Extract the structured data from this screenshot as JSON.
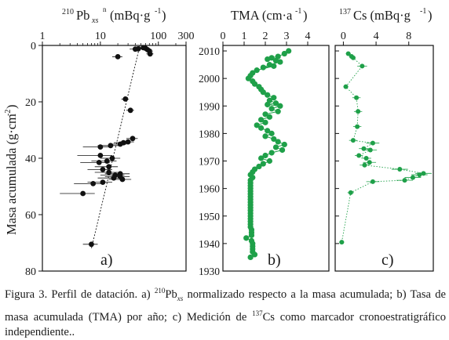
{
  "chart_data": [
    {
      "type": "scatter",
      "panel_label": "a)",
      "title_prefix": "210",
      "title_main": "Pb",
      "title_sub": "xs",
      "title_sup": "n",
      "title_unit": "(mBq·g",
      "title_unit_sup": "-1",
      "title_unit_end": ")",
      "ylabel_main": "Masa acumulada (g·cm",
      "ylabel_sup": "-2",
      "ylabel_end": ")",
      "xscale": "log",
      "xlim": [
        1,
        300
      ],
      "ylim": [
        80,
        0
      ],
      "xticks": [
        1,
        10,
        100,
        300
      ],
      "xtick_labels": [
        "1",
        "10",
        "100",
        "300"
      ],
      "yticks": [
        0,
        20,
        40,
        60,
        80
      ],
      "ytick_labels": [
        "0",
        "20",
        "40",
        "60",
        "80"
      ],
      "points": [
        {
          "x": 60,
          "y": 1,
          "err": 10
        },
        {
          "x": 65,
          "y": 1.5,
          "err": 12
        },
        {
          "x": 70,
          "y": 2,
          "err": 10
        },
        {
          "x": 55,
          "y": 0.8,
          "err": 12
        },
        {
          "x": 45,
          "y": 1.2,
          "err": 8
        },
        {
          "x": 40,
          "y": 1.3,
          "err": 8
        },
        {
          "x": 72,
          "y": 3,
          "err": 10
        },
        {
          "x": 20,
          "y": 4,
          "err": 4
        },
        {
          "x": 27,
          "y": 19,
          "err": 4
        },
        {
          "x": 33,
          "y": 23,
          "err": 5
        },
        {
          "x": 36,
          "y": 33,
          "err": 8
        },
        {
          "x": 30,
          "y": 34.2,
          "err": 8
        },
        {
          "x": 25,
          "y": 34.5,
          "err": 8
        },
        {
          "x": 22,
          "y": 35,
          "err": 6
        },
        {
          "x": 15,
          "y": 35.5,
          "err": 6
        },
        {
          "x": 10,
          "y": 36,
          "err": 5
        },
        {
          "x": 10,
          "y": 39,
          "err": 6
        },
        {
          "x": 16,
          "y": 40,
          "err": 6
        },
        {
          "x": 13,
          "y": 41,
          "err": 6
        },
        {
          "x": 9.5,
          "y": 41.5,
          "err": 5
        },
        {
          "x": 14,
          "y": 43,
          "err": 6
        },
        {
          "x": 11,
          "y": 44,
          "err": 5
        },
        {
          "x": 14,
          "y": 45,
          "err": 6
        },
        {
          "x": 22,
          "y": 45.5,
          "err": 10
        },
        {
          "x": 18,
          "y": 46,
          "err": 8
        },
        {
          "x": 22,
          "y": 46.5,
          "err": 10
        },
        {
          "x": 17,
          "y": 47,
          "err": 8
        },
        {
          "x": 24,
          "y": 47.5,
          "err": 10
        },
        {
          "x": 11,
          "y": 48.5,
          "err": 5
        },
        {
          "x": 7.5,
          "y": 49,
          "err": 4
        },
        {
          "x": 5,
          "y": 52.5,
          "err": 3
        },
        {
          "x": 7,
          "y": 70.5,
          "err": 2
        }
      ],
      "fit_line": [
        {
          "x": 48,
          "y": 0
        },
        {
          "x": 7,
          "y": 72
        }
      ]
    },
    {
      "type": "scatter",
      "panel_label": "b)",
      "title_main": "TMA (cm·a",
      "title_sup": "-1",
      "title_end": ")",
      "xlim": [
        0,
        5
      ],
      "ylim": [
        1930,
        2012
      ],
      "xticks": [
        0,
        1,
        2,
        3,
        4
      ],
      "xtick_labels": [
        "0",
        "1",
        "2",
        "3",
        "4"
      ],
      "yticks": [
        1930,
        1940,
        1950,
        1960,
        1970,
        1980,
        1990,
        2000,
        2010
      ],
      "ytick_labels": [
        "1930",
        "1940",
        "1950",
        "1960",
        "1970",
        "1980",
        "1990",
        "2000",
        "2010"
      ],
      "points": [
        {
          "x": 3.1,
          "y": 2010
        },
        {
          "x": 2.9,
          "y": 2009
        },
        {
          "x": 2.6,
          "y": 2008
        },
        {
          "x": 2.3,
          "y": 2007.5
        },
        {
          "x": 2.1,
          "y": 2007
        },
        {
          "x": 2.5,
          "y": 2006.5
        },
        {
          "x": 2.7,
          "y": 2006
        },
        {
          "x": 2.2,
          "y": 2005
        },
        {
          "x": 1.9,
          "y": 2004
        },
        {
          "x": 2.4,
          "y": 2004.5
        },
        {
          "x": 1.6,
          "y": 2003
        },
        {
          "x": 1.4,
          "y": 2002
        },
        {
          "x": 1.3,
          "y": 2001
        },
        {
          "x": 1.2,
          "y": 2000
        },
        {
          "x": 1.4,
          "y": 1999
        },
        {
          "x": 1.5,
          "y": 1998
        },
        {
          "x": 1.7,
          "y": 1997
        },
        {
          "x": 1.8,
          "y": 1996
        },
        {
          "x": 1.9,
          "y": 1995
        },
        {
          "x": 2.1,
          "y": 1994
        },
        {
          "x": 2.4,
          "y": 1993
        },
        {
          "x": 2.2,
          "y": 1992
        },
        {
          "x": 2.5,
          "y": 1991
        },
        {
          "x": 2.1,
          "y": 1990.5
        },
        {
          "x": 2.7,
          "y": 1990
        },
        {
          "x": 2.3,
          "y": 1989
        },
        {
          "x": 2.6,
          "y": 1988
        },
        {
          "x": 2.0,
          "y": 1987
        },
        {
          "x": 2.2,
          "y": 1986
        },
        {
          "x": 1.8,
          "y": 1985
        },
        {
          "x": 2.0,
          "y": 1984
        },
        {
          "x": 1.6,
          "y": 1983
        },
        {
          "x": 1.8,
          "y": 1982
        },
        {
          "x": 2.1,
          "y": 1981
        },
        {
          "x": 2.3,
          "y": 1980
        },
        {
          "x": 2.0,
          "y": 1979
        },
        {
          "x": 2.4,
          "y": 1978
        },
        {
          "x": 2.6,
          "y": 1977
        },
        {
          "x": 2.9,
          "y": 1976
        },
        {
          "x": 2.5,
          "y": 1975
        },
        {
          "x": 2.8,
          "y": 1974
        },
        {
          "x": 2.3,
          "y": 1973
        },
        {
          "x": 2.0,
          "y": 1972
        },
        {
          "x": 1.8,
          "y": 1971
        },
        {
          "x": 2.2,
          "y": 1970
        },
        {
          "x": 1.9,
          "y": 1969
        },
        {
          "x": 1.7,
          "y": 1968
        },
        {
          "x": 1.5,
          "y": 1967
        },
        {
          "x": 1.4,
          "y": 1966
        },
        {
          "x": 1.3,
          "y": 1965
        },
        {
          "x": 1.4,
          "y": 1964
        },
        {
          "x": 1.3,
          "y": 1963
        },
        {
          "x": 1.3,
          "y": 1962
        },
        {
          "x": 1.3,
          "y": 1961
        },
        {
          "x": 1.3,
          "y": 1960
        },
        {
          "x": 1.3,
          "y": 1959
        },
        {
          "x": 1.3,
          "y": 1958
        },
        {
          "x": 1.3,
          "y": 1957
        },
        {
          "x": 1.3,
          "y": 1956
        },
        {
          "x": 1.3,
          "y": 1955
        },
        {
          "x": 1.3,
          "y": 1954
        },
        {
          "x": 1.3,
          "y": 1953
        },
        {
          "x": 1.3,
          "y": 1952
        },
        {
          "x": 1.3,
          "y": 1951
        },
        {
          "x": 1.3,
          "y": 1950
        },
        {
          "x": 1.3,
          "y": 1949
        },
        {
          "x": 1.3,
          "y": 1948
        },
        {
          "x": 1.3,
          "y": 1947
        },
        {
          "x": 1.3,
          "y": 1946
        },
        {
          "x": 1.35,
          "y": 1945
        },
        {
          "x": 1.35,
          "y": 1944
        },
        {
          "x": 1.35,
          "y": 1943
        },
        {
          "x": 1.1,
          "y": 1942
        },
        {
          "x": 1.35,
          "y": 1941
        },
        {
          "x": 1.4,
          "y": 1940
        },
        {
          "x": 1.4,
          "y": 1939
        },
        {
          "x": 1.4,
          "y": 1938
        },
        {
          "x": 1.4,
          "y": 1937
        },
        {
          "x": 1.5,
          "y": 1936
        },
        {
          "x": 1.3,
          "y": 1935
        }
      ]
    },
    {
      "type": "scatter",
      "panel_label": "c)",
      "title_prefix": "137",
      "title_main": "Cs (mBq·g",
      "title_sup": "-1",
      "title_end": ")",
      "xlim": [
        -1,
        11
      ],
      "ylim": [
        1930,
        2012
      ],
      "xticks": [
        0,
        4,
        8
      ],
      "xtick_labels": [
        "0",
        "4",
        "8"
      ],
      "yticks": [
        1930,
        1940,
        1950,
        1960,
        1970,
        1980,
        1990,
        2000,
        2010
      ],
      "points": [
        {
          "x": 0.6,
          "y": 2009,
          "err": 0.3
        },
        {
          "x": 1.0,
          "y": 2008,
          "err": 0.3
        },
        {
          "x": 1.2,
          "y": 2007.5,
          "err": 0.3
        },
        {
          "x": 2.3,
          "y": 2004.5,
          "err": 0.6
        },
        {
          "x": 0.3,
          "y": 1997,
          "err": 0.3
        },
        {
          "x": 1.6,
          "y": 1993,
          "err": 0.5
        },
        {
          "x": 1.8,
          "y": 1988,
          "err": 0.5
        },
        {
          "x": 1.7,
          "y": 1982.5,
          "err": 0.5
        },
        {
          "x": 1.2,
          "y": 1977.5,
          "err": 0.5
        },
        {
          "x": 3.6,
          "y": 1976.5,
          "err": 0.8
        },
        {
          "x": 2.5,
          "y": 1974.5,
          "err": 0.6
        },
        {
          "x": 3.3,
          "y": 1974,
          "err": 0.8
        },
        {
          "x": 1.9,
          "y": 1972,
          "err": 0.5
        },
        {
          "x": 2.8,
          "y": 1971,
          "err": 0.6
        },
        {
          "x": 3.2,
          "y": 1969.5,
          "err": 0.8
        },
        {
          "x": 2.6,
          "y": 1968.5,
          "err": 0.6
        },
        {
          "x": 6.9,
          "y": 1967,
          "err": 1.0
        },
        {
          "x": 9.8,
          "y": 1965.5,
          "err": 1.0
        },
        {
          "x": 9.3,
          "y": 1965,
          "err": 1.0
        },
        {
          "x": 8.5,
          "y": 1964,
          "err": 1.0
        },
        {
          "x": 7.5,
          "y": 1963,
          "err": 1.0
        },
        {
          "x": 3.6,
          "y": 1962.5,
          "err": 0.8
        },
        {
          "x": 0.9,
          "y": 1958.5,
          "err": 0.4
        },
        {
          "x": -0.2,
          "y": 1940.5,
          "err": 0.3
        }
      ]
    }
  ],
  "caption": {
    "fig_label": "Figura 3. Perfil de datación. a) ",
    "sup1": "210",
    "pb": "Pb",
    "sub1": "xs",
    "part2": " normalizado respecto a la masa acumulada; b) Tasa de masa acumulada (TMA) por año; c) Medición de ",
    "sup2": "137",
    "part3": "Cs como marcador cronoestratigráfico independiente.."
  },
  "colors": {
    "green": "#1fa049",
    "black": "#111111"
  }
}
